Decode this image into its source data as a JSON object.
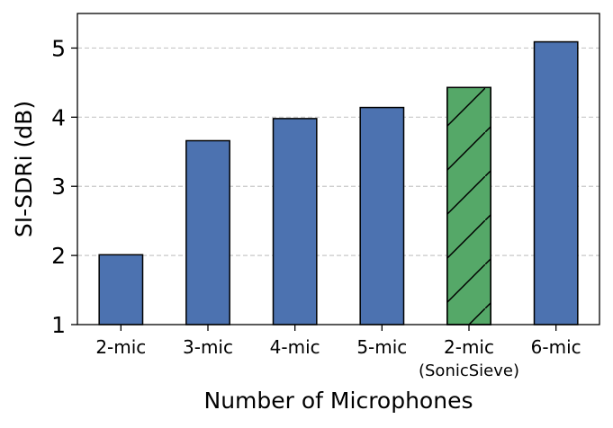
{
  "chart_data": {
    "type": "bar",
    "xlabel": "Number of Microphones",
    "ylabel": "SI-SDRi (dB)",
    "ylim": [
      1,
      5.5
    ],
    "yticks": [
      1,
      2,
      3,
      4,
      5
    ],
    "grid": "horizontal dashed",
    "categories": [
      "2-mic",
      "3-mic",
      "4-mic",
      "5-mic",
      "2-mic\n(SonicSieve)",
      "6-mic"
    ],
    "values": [
      2.01,
      3.66,
      3.98,
      4.14,
      4.43,
      5.09
    ],
    "bar_colors": [
      "#4c72b0",
      "#4c72b0",
      "#4c72b0",
      "#4c72b0",
      "#55a868",
      "#4c72b0"
    ],
    "hatched": [
      false,
      false,
      false,
      false,
      true,
      false
    ]
  }
}
